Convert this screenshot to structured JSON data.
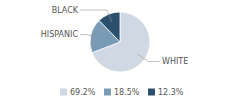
{
  "chart_data": {
    "type": "pie",
    "categories": [
      "WHITE",
      "HISPANIC",
      "BLACK"
    ],
    "values": [
      69.2,
      18.5,
      12.3
    ],
    "value_labels": [
      "69.2%",
      "18.5%",
      "12.3%"
    ],
    "colors": [
      "#d0d8e4",
      "#7a9bb5",
      "#2c4f6b"
    ],
    "legend": "bottom"
  }
}
